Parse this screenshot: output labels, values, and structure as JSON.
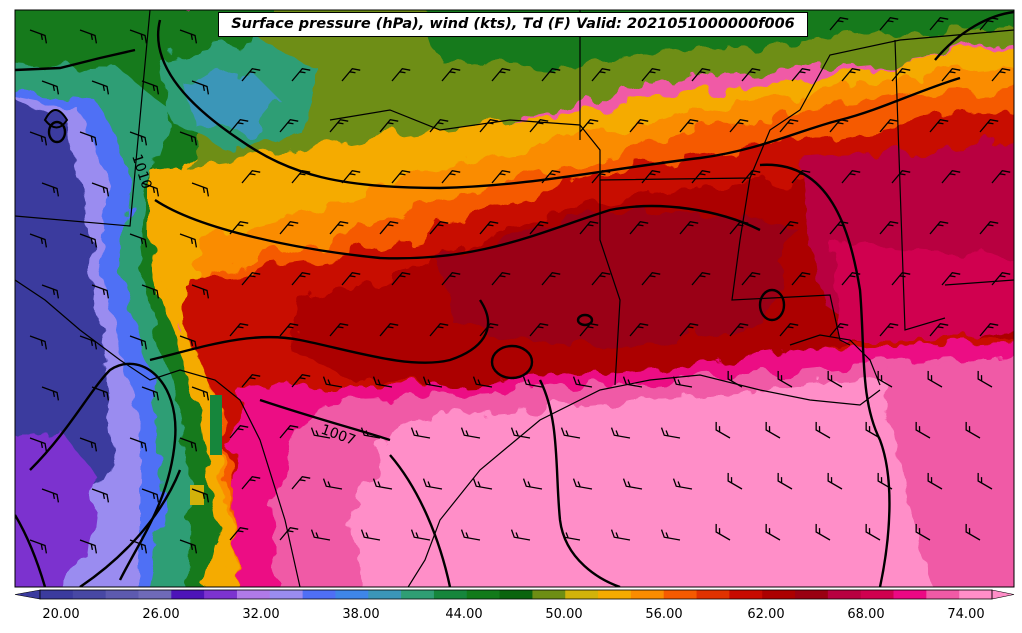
{
  "title": "Surface pressure (hPa), wind (kts), Td (F) Valid: 2021051000000f006",
  "isobar_labels": [
    "1010",
    "1007"
  ],
  "colorbar": {
    "tick_labels": [
      "20.00",
      "26.00",
      "32.00",
      "38.00",
      "44.00",
      "50.00",
      "56.00",
      "62.00",
      "68.00",
      "74.00"
    ],
    "colors": [
      "#3b3b9e",
      "#4848a4",
      "#5d5aaf",
      "#6f6ab8",
      "#4d14b8",
      "#7c33cf",
      "#b07ae8",
      "#9a8cf0",
      "#4f6ff5",
      "#3f86e8",
      "#3b96b8",
      "#2f9e74",
      "#16863c",
      "#127a1a",
      "#0a640e",
      "#6e8e14",
      "#d2b20a",
      "#f5ab00",
      "#fa8c00",
      "#f55a00",
      "#e03200",
      "#c80a00",
      "#ac0000",
      "#9a0012",
      "#b80040",
      "#d0004f",
      "#ec0884",
      "#f05aa6",
      "#ff8ec8"
    ]
  }
}
